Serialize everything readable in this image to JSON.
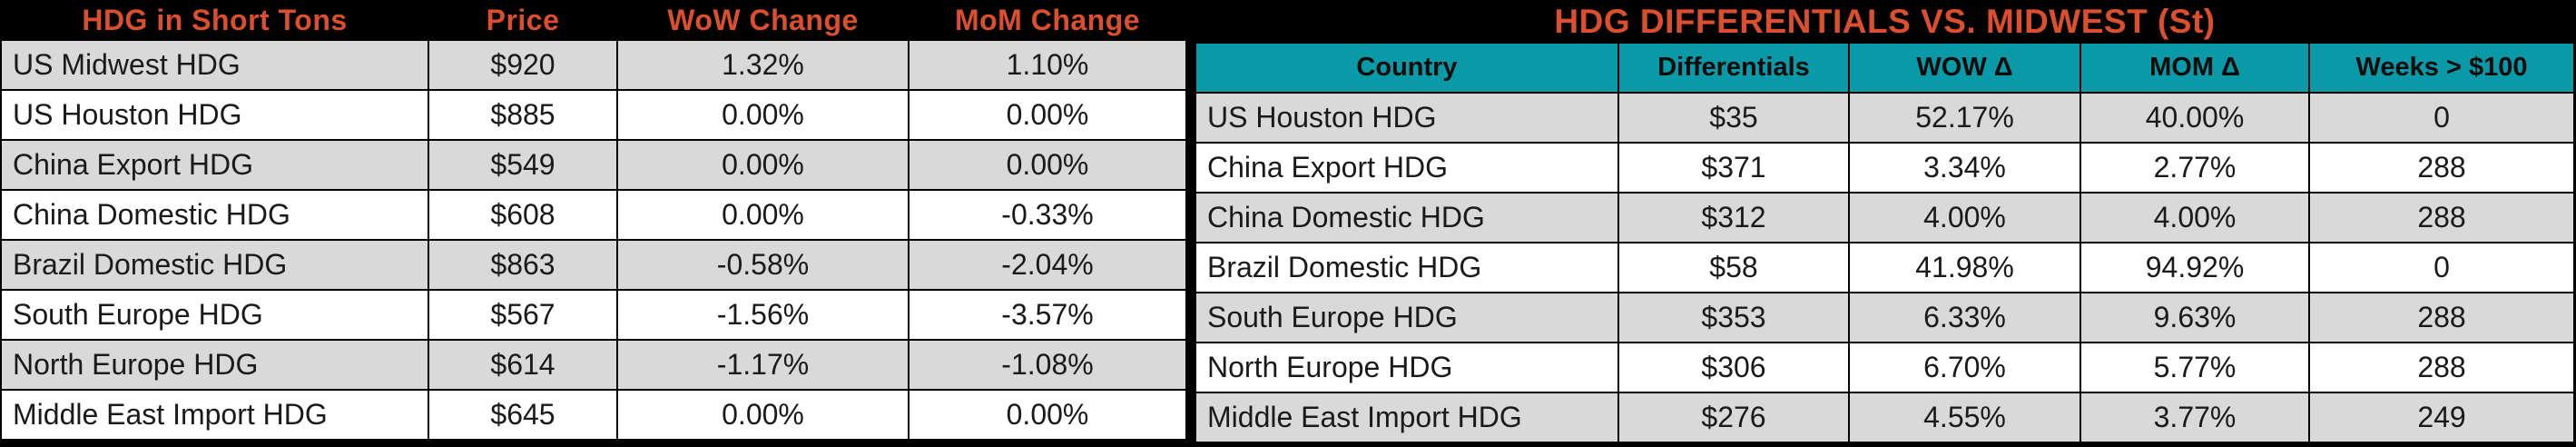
{
  "colors": {
    "accent_orange": "#DC4F2E",
    "teal_header": "#0999A7",
    "row_gray": "#D9D9D9",
    "row_white": "#FFFFFF",
    "header_black": "#000000"
  },
  "left_table": {
    "headers": [
      "HDG in Short Tons",
      "Price",
      "WoW Change",
      "MoM Change"
    ],
    "rows": [
      [
        "US Midwest HDG",
        "$920",
        "1.32%",
        "1.10%"
      ],
      [
        "US Houston HDG",
        "$885",
        "0.00%",
        "0.00%"
      ],
      [
        "China Export HDG",
        "$549",
        "0.00%",
        "0.00%"
      ],
      [
        "China Domestic HDG",
        "$608",
        "0.00%",
        "-0.33%"
      ],
      [
        "Brazil Domestic HDG",
        "$863",
        "-0.58%",
        "-2.04%"
      ],
      [
        "South Europe HDG",
        "$567",
        "-1.56%",
        "-3.57%"
      ],
      [
        "North Europe HDG",
        "$614",
        "-1.17%",
        "-1.08%"
      ],
      [
        "Middle East Import HDG",
        "$645",
        "0.00%",
        "0.00%"
      ]
    ]
  },
  "right_table": {
    "title": "HDG DIFFERENTIALS VS. MIDWEST (St)",
    "headers": [
      "Country",
      "Differentials",
      "WOW Δ",
      "MOM Δ",
      "Weeks > $100"
    ],
    "rows": [
      [
        "US Houston HDG",
        "$35",
        "52.17%",
        "40.00%",
        "0"
      ],
      [
        "China Export HDG",
        "$371",
        "3.34%",
        "2.77%",
        "288"
      ],
      [
        "China Domestic HDG",
        "$312",
        "4.00%",
        "4.00%",
        "288"
      ],
      [
        "Brazil Domestic HDG",
        "$58",
        "41.98%",
        "94.92%",
        "0"
      ],
      [
        "South Europe HDG",
        "$353",
        "6.33%",
        "9.63%",
        "288"
      ],
      [
        "North Europe HDG",
        "$306",
        "6.70%",
        "5.77%",
        "288"
      ],
      [
        "Middle East Import HDG",
        "$276",
        "4.55%",
        "3.77%",
        "249"
      ]
    ]
  },
  "chart_data": [
    {
      "type": "table",
      "title": "HDG in Short Tons",
      "columns": [
        "HDG in Short Tons",
        "Price",
        "WoW Change",
        "MoM Change"
      ],
      "rows": [
        [
          "US Midwest HDG",
          920,
          "1.32%",
          "1.10%"
        ],
        [
          "US Houston HDG",
          885,
          "0.00%",
          "0.00%"
        ],
        [
          "China Export HDG",
          549,
          "0.00%",
          "0.00%"
        ],
        [
          "China Domestic HDG",
          608,
          "0.00%",
          "-0.33%"
        ],
        [
          "Brazil Domestic HDG",
          863,
          "-0.58%",
          "-2.04%"
        ],
        [
          "South Europe HDG",
          567,
          "-1.56%",
          "-3.57%"
        ],
        [
          "North Europe HDG",
          614,
          "-1.17%",
          "-1.08%"
        ],
        [
          "Middle East Import HDG",
          645,
          "0.00%",
          "0.00%"
        ]
      ]
    },
    {
      "type": "table",
      "title": "HDG DIFFERENTIALS VS. MIDWEST (St)",
      "columns": [
        "Country",
        "Differentials",
        "WOW Δ",
        "MOM Δ",
        "Weeks > $100"
      ],
      "rows": [
        [
          "US Houston HDG",
          35,
          "52.17%",
          "40.00%",
          0
        ],
        [
          "China Export HDG",
          371,
          "3.34%",
          "2.77%",
          288
        ],
        [
          "China Domestic HDG",
          312,
          "4.00%",
          "4.00%",
          288
        ],
        [
          "Brazil Domestic HDG",
          58,
          "41.98%",
          "94.92%",
          0
        ],
        [
          "South Europe HDG",
          353,
          "6.33%",
          "9.63%",
          288
        ],
        [
          "North Europe HDG",
          306,
          "6.70%",
          "5.77%",
          288
        ],
        [
          "Middle East Import HDG",
          276,
          "4.55%",
          "3.77%",
          249
        ]
      ]
    }
  ]
}
